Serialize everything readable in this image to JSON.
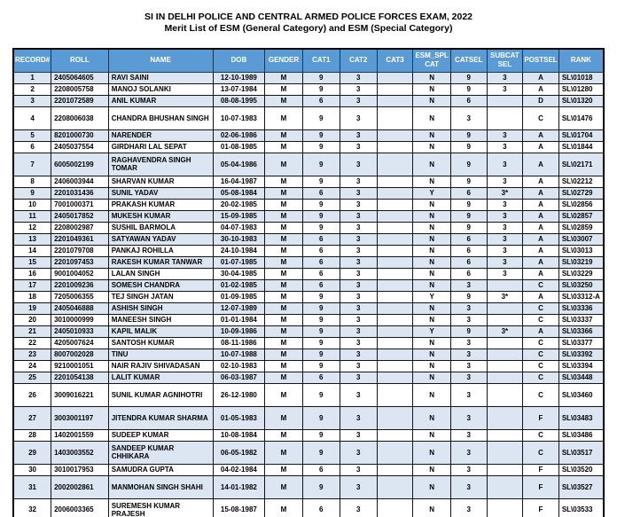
{
  "header": {
    "title_line1": "SI IN DELHI POLICE AND CENTRAL ARMED POLICE FORCES EXAM, 2022",
    "title_line2": "Merit List of ESM (General Category) and ESM (Special Category)"
  },
  "colors": {
    "header_bg": "#5b9bd5",
    "header_text": "#ffffff",
    "row_alt_bg": "#dce6f2",
    "row_bg": "#ffffff",
    "border": "#141414",
    "title_text": "#000000"
  },
  "table": {
    "columns": [
      {
        "key": "record",
        "label": "RECORD#"
      },
      {
        "key": "roll",
        "label": "ROLL"
      },
      {
        "key": "name",
        "label": "NAME"
      },
      {
        "key": "dob",
        "label": "DOB"
      },
      {
        "key": "gender",
        "label": "GENDER"
      },
      {
        "key": "cat1",
        "label": "CAT1"
      },
      {
        "key": "cat2",
        "label": "CAT2"
      },
      {
        "key": "cat3",
        "label": "CAT3"
      },
      {
        "key": "esm-spl-cat",
        "label": "ESM_SPL CAT"
      },
      {
        "key": "catsel",
        "label": "CATSEL"
      },
      {
        "key": "subcat-sel",
        "label": "SUBCAT SEL"
      },
      {
        "key": "postsel",
        "label": "POSTSEL"
      },
      {
        "key": "rank",
        "label": "RANK"
      }
    ],
    "rows": [
      [
        "1",
        "2405064605",
        "RAVI SAINI",
        "12-10-1989",
        "M",
        "9",
        "3",
        "",
        "N",
        "9",
        "3",
        "A",
        "SL\\01018"
      ],
      [
        "2",
        "2208005758",
        "MANOJ SOLANKI",
        "13-07-1984",
        "M",
        "9",
        "3",
        "",
        "N",
        "9",
        "3",
        "A",
        "SL\\01280"
      ],
      [
        "3",
        "2201072589",
        "ANIL KUMAR",
        "08-08-1995",
        "M",
        "6",
        "3",
        "",
        "N",
        "6",
        "",
        "D",
        "SL\\01320"
      ],
      [
        "4",
        "2208006038",
        "CHANDRA BHUSHAN SINGH",
        "10-07-1983",
        "M",
        "9",
        "3",
        "",
        "N",
        "3",
        "",
        "C",
        "SL\\01476"
      ],
      [
        "5",
        "8201000730",
        "NARENDER",
        "02-06-1986",
        "M",
        "9",
        "3",
        "",
        "N",
        "9",
        "3",
        "A",
        "SL\\01704"
      ],
      [
        "6",
        "2405037554",
        "GIRDHARI LAL SEPAT",
        "01-08-1985",
        "M",
        "9",
        "3",
        "",
        "N",
        "9",
        "3",
        "A",
        "SL\\01844"
      ],
      [
        "7",
        "6005002199",
        "RAGHAVENDRA SINGH TOMAR",
        "05-04-1986",
        "M",
        "9",
        "3",
        "",
        "N",
        "9",
        "3",
        "A",
        "SL\\02171"
      ],
      [
        "8",
        "2406003944",
        "SHARVAN KUMAR",
        "16-04-1987",
        "M",
        "9",
        "3",
        "",
        "N",
        "9",
        "3",
        "A",
        "SL\\02212"
      ],
      [
        "9",
        "2201031436",
        "SUNIL YADAV",
        "05-08-1984",
        "M",
        "6",
        "3",
        "",
        "Y",
        "6",
        "3*",
        "A",
        "SL\\02729"
      ],
      [
        "10",
        "7001000371",
        "PRAKASH KUMAR",
        "20-02-1985",
        "M",
        "9",
        "3",
        "",
        "N",
        "9",
        "3",
        "A",
        "SL\\02856"
      ],
      [
        "11",
        "2405017852",
        "MUKESH KUMAR",
        "15-09-1985",
        "M",
        "9",
        "3",
        "",
        "N",
        "9",
        "3",
        "A",
        "SL\\02857"
      ],
      [
        "12",
        "2208002987",
        "SUSHIL BARMOLA",
        "04-07-1983",
        "M",
        "9",
        "3",
        "",
        "N",
        "9",
        "3",
        "A",
        "SL\\02859"
      ],
      [
        "13",
        "2201049361",
        "SATYAWAN YADAV",
        "30-10-1983",
        "M",
        "6",
        "3",
        "",
        "N",
        "6",
        "3",
        "A",
        "SL\\03007"
      ],
      [
        "14",
        "2201079708",
        "PANKAJ ROHILLA",
        "24-10-1984",
        "M",
        "6",
        "3",
        "",
        "N",
        "6",
        "3",
        "A",
        "SL\\03013"
      ],
      [
        "15",
        "2201097453",
        "RAKESH KUMAR TANWAR",
        "01-07-1985",
        "M",
        "6",
        "3",
        "",
        "N",
        "6",
        "3",
        "A",
        "SL\\03219"
      ],
      [
        "16",
        "9001004052",
        "LALAN SINGH",
        "30-04-1985",
        "M",
        "6",
        "3",
        "",
        "N",
        "6",
        "3",
        "A",
        "SL\\03229"
      ],
      [
        "17",
        "2201009236",
        "SOMESH CHANDRA",
        "01-02-1985",
        "M",
        "6",
        "3",
        "",
        "N",
        "3",
        "",
        "C",
        "SL\\03250"
      ],
      [
        "18",
        "7205006355",
        "TEJ SINGH JATAN",
        "01-09-1985",
        "M",
        "9",
        "3",
        "",
        "Y",
        "9",
        "3*",
        "A",
        "SL\\03312-A"
      ],
      [
        "19",
        "2405046888",
        "ASHISH SINGH",
        "12-07-1989",
        "M",
        "9",
        "3",
        "",
        "N",
        "3",
        "",
        "C",
        "SL\\03336"
      ],
      [
        "20",
        "3010000999",
        "MANEESH SINGH",
        "01-01-1984",
        "M",
        "9",
        "3",
        "",
        "N",
        "3",
        "",
        "C",
        "SL\\03337"
      ],
      [
        "21",
        "2405010933",
        "KAPIL MALIK",
        "10-09-1986",
        "M",
        "9",
        "3",
        "",
        "Y",
        "9",
        "3*",
        "A",
        "SL\\03366"
      ],
      [
        "22",
        "4205007624",
        "SANTOSH KUMAR",
        "08-11-1986",
        "M",
        "9",
        "3",
        "",
        "N",
        "3",
        "",
        "C",
        "SL\\03377"
      ],
      [
        "23",
        "8007002028",
        "TINU",
        "10-07-1988",
        "M",
        "9",
        "3",
        "",
        "N",
        "3",
        "",
        "C",
        "SL\\03392"
      ],
      [
        "24",
        "9210001051",
        "NAIR RAJIV SHIVADASAN",
        "02-10-1983",
        "M",
        "9",
        "3",
        "",
        "N",
        "3",
        "",
        "C",
        "SL\\03394"
      ],
      [
        "25",
        "2201054138",
        "LALIT KUMAR",
        "06-03-1987",
        "M",
        "6",
        "3",
        "",
        "N",
        "3",
        "",
        "C",
        "SL\\03448"
      ],
      [
        "26",
        "3009016221",
        "SUNIL KUMAR AGNIHOTRI",
        "26-12-1980",
        "M",
        "9",
        "3",
        "",
        "N",
        "3",
        "",
        "C",
        "SL\\03460"
      ],
      [
        "27",
        "3003001197",
        "JITENDRA KUMAR SHARMA",
        "01-05-1983",
        "M",
        "9",
        "3",
        "",
        "N",
        "3",
        "",
        "F",
        "SL\\03483"
      ],
      [
        "28",
        "1402001559",
        "SUDEEP KUMAR",
        "10-08-1984",
        "M",
        "9",
        "3",
        "",
        "N",
        "3",
        "",
        "C",
        "SL\\03486"
      ],
      [
        "29",
        "1403003552",
        "SANDEEP KUMAR CHHIKARA",
        "06-05-1982",
        "M",
        "9",
        "3",
        "",
        "N",
        "3",
        "",
        "C",
        "SL\\03517"
      ],
      [
        "30",
        "3010017953",
        "SAMUDRA GUPTA",
        "04-02-1984",
        "M",
        "6",
        "3",
        "",
        "N",
        "3",
        "",
        "F",
        "SL\\03520"
      ],
      [
        "31",
        "2002002861",
        "MANMOHAN SINGH SHAHI",
        "14-01-1982",
        "M",
        "9",
        "3",
        "",
        "N",
        "3",
        "",
        "F",
        "SL\\03527"
      ],
      [
        "32",
        "2006003365",
        "SUREMESH KUMAR PRAJESH",
        "15-08-1987",
        "M",
        "6",
        "3",
        "",
        "N",
        "3",
        "",
        "F",
        "SL\\03533"
      ]
    ]
  }
}
